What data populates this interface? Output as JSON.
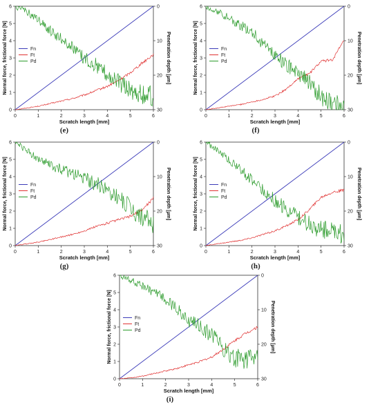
{
  "chart_data": [
    {
      "type": "line",
      "caption": "(e)",
      "xlabel": "Scratch length [mm]",
      "ylabel": "Normal force, frictional force [N]",
      "y2label": "Penetration depth [µm]",
      "xlim": [
        0,
        6
      ],
      "ylim": [
        0,
        6
      ],
      "y2lim": [
        0,
        30
      ],
      "y2_inverted": true,
      "xticks": [
        "0",
        "1",
        "2",
        "3",
        "4",
        "5",
        "6"
      ],
      "yticks": [
        "0",
        "1",
        "2",
        "3",
        "4",
        "5",
        "6"
      ],
      "y2ticks": [
        "0",
        "10",
        "20",
        "30"
      ],
      "legend_position": "left",
      "series": [
        {
          "name": "Fn",
          "axis": "left",
          "color": "#3a3ab8",
          "x": [
            0,
            6
          ],
          "y": [
            0,
            6
          ]
        },
        {
          "name": "Ft",
          "axis": "left",
          "color": "#e03030",
          "x": [
            0,
            0.5,
            1,
            1.5,
            2,
            2.5,
            3,
            3.5,
            4,
            4.5,
            5,
            5.5,
            6
          ],
          "y": [
            0,
            0.1,
            0.2,
            0.35,
            0.5,
            0.65,
            0.85,
            1.1,
            1.35,
            1.7,
            2.15,
            2.7,
            3.2
          ]
        },
        {
          "name": "Pd",
          "axis": "right",
          "color": "#2a9a2a",
          "x": [
            0,
            0.5,
            1,
            1.5,
            2,
            2.5,
            3,
            3.5,
            4,
            4.5,
            5,
            5.5,
            6
          ],
          "y": [
            0,
            1.5,
            4,
            7,
            9.5,
            12,
            15,
            17,
            19.5,
            22,
            24,
            25.5,
            26
          ]
        }
      ]
    },
    {
      "type": "line",
      "caption": "(f)",
      "xlabel": "Scratch length [mm]",
      "ylabel": "Normal force, frictional force [N]",
      "y2label": "Penetration depth [µm]",
      "xlim": [
        0,
        6
      ],
      "ylim": [
        0,
        6
      ],
      "y2lim": [
        0,
        30
      ],
      "y2_inverted": true,
      "xticks": [
        "0",
        "1",
        "2",
        "3",
        "4",
        "5",
        "6"
      ],
      "yticks": [
        "0",
        "1",
        "2",
        "3",
        "4",
        "5",
        "6"
      ],
      "y2ticks": [
        "0",
        "10",
        "20",
        "30"
      ],
      "legend_position": "left",
      "series": [
        {
          "name": "Fn",
          "axis": "left",
          "color": "#3a3ab8",
          "x": [
            0,
            6
          ],
          "y": [
            0,
            6
          ]
        },
        {
          "name": "Ft",
          "axis": "left",
          "color": "#e03030",
          "x": [
            0,
            0.5,
            1,
            1.5,
            2,
            2.5,
            3,
            3.5,
            4,
            4.5,
            5,
            5.5,
            6
          ],
          "y": [
            0,
            0.1,
            0.2,
            0.3,
            0.45,
            0.6,
            0.8,
            1.2,
            1.8,
            2.1,
            2.8,
            2.9,
            4
          ]
        },
        {
          "name": "Pd",
          "axis": "right",
          "color": "#2a9a2a",
          "x": [
            0,
            0.5,
            1,
            1.5,
            2,
            2.5,
            3,
            3.5,
            4,
            4.5,
            5,
            5.5,
            6
          ],
          "y": [
            0,
            1.5,
            3.5,
            5.5,
            7.5,
            11,
            14,
            17,
            20,
            22,
            26,
            28,
            29
          ]
        }
      ]
    },
    {
      "type": "line",
      "caption": "(g)",
      "xlabel": "Scratch length [mm]",
      "ylabel": "Normal force, frictional force [N]",
      "y2label": "Penetration depth [µm]",
      "xlim": [
        0,
        6
      ],
      "ylim": [
        0,
        6
      ],
      "y2lim": [
        0,
        30
      ],
      "y2_inverted": true,
      "xticks": [
        "0",
        "1",
        "2",
        "3",
        "4",
        "5",
        "6"
      ],
      "yticks": [
        "0",
        "1",
        "2",
        "3",
        "4",
        "5",
        "6"
      ],
      "y2ticks": [
        "0",
        "10",
        "20",
        "30"
      ],
      "legend_position": "left",
      "series": [
        {
          "name": "Fn",
          "axis": "left",
          "color": "#3a3ab8",
          "x": [
            0,
            6
          ],
          "y": [
            0,
            6
          ]
        },
        {
          "name": "Ft",
          "axis": "left",
          "color": "#e03030",
          "x": [
            0,
            0.5,
            1,
            1.5,
            2,
            2.5,
            3,
            3.5,
            4,
            4.5,
            5,
            5.5,
            6
          ],
          "y": [
            0,
            0.1,
            0.2,
            0.35,
            0.5,
            0.65,
            0.85,
            1.1,
            1.3,
            1.5,
            1.7,
            2.05,
            2.75
          ]
        },
        {
          "name": "Pd",
          "axis": "right",
          "color": "#2a9a2a",
          "x": [
            0,
            0.5,
            1,
            1.5,
            2,
            2.5,
            3,
            3.5,
            4,
            4.5,
            5,
            5.5,
            6
          ],
          "y": [
            0,
            2.5,
            5,
            6.5,
            8,
            9,
            10.5,
            12,
            14,
            16,
            19,
            21.5,
            24
          ]
        }
      ]
    },
    {
      "type": "line",
      "caption": "(h)",
      "xlabel": "Scratch length [mm]",
      "ylabel": "Normal force, frictional force [N]",
      "y2label": "Penetration depth [µm]",
      "xlim": [
        0,
        6
      ],
      "ylim": [
        0,
        6
      ],
      "y2lim": [
        0,
        30
      ],
      "y2_inverted": true,
      "xticks": [
        "0",
        "1",
        "2",
        "3",
        "4",
        "5",
        "6"
      ],
      "yticks": [
        "0",
        "1",
        "2",
        "3",
        "4",
        "5",
        "6"
      ],
      "y2ticks": [
        "0",
        "10",
        "20",
        "30"
      ],
      "legend_position": "left",
      "series": [
        {
          "name": "Fn",
          "axis": "left",
          "color": "#3a3ab8",
          "x": [
            0,
            6
          ],
          "y": [
            0,
            6
          ]
        },
        {
          "name": "Ft",
          "axis": "left",
          "color": "#e03030",
          "x": [
            0,
            0.5,
            1,
            1.5,
            2,
            2.5,
            3,
            3.5,
            4,
            4.5,
            5,
            5.5,
            6
          ],
          "y": [
            0,
            0.1,
            0.2,
            0.3,
            0.45,
            0.65,
            0.85,
            1.15,
            1.5,
            2.1,
            2.8,
            3.1,
            3.2
          ]
        },
        {
          "name": "Pd",
          "axis": "right",
          "color": "#2a9a2a",
          "x": [
            0,
            0.5,
            1,
            1.5,
            2,
            2.5,
            3,
            3.5,
            4,
            4.5,
            5,
            5.5,
            6
          ],
          "y": [
            0,
            2.5,
            5,
            8,
            11,
            14,
            17,
            19.5,
            22,
            24,
            25.5,
            26,
            26.5
          ]
        }
      ]
    },
    {
      "type": "line",
      "caption": "(i)",
      "xlabel": "Scratch length [mm]",
      "ylabel": "Normal force, frictional force [N]",
      "y2label": "Penetration depth [µm]",
      "xlim": [
        0,
        6
      ],
      "ylim": [
        0,
        6
      ],
      "y2lim": [
        0,
        30
      ],
      "y2_inverted": true,
      "xticks": [
        "0",
        "1",
        "2",
        "3",
        "4",
        "5",
        "6"
      ],
      "yticks": [
        "0",
        "1",
        "2",
        "3",
        "4",
        "5",
        "6"
      ],
      "y2ticks": [
        "0",
        "10",
        "20",
        "30"
      ],
      "legend_position": "left",
      "series": [
        {
          "name": "Fn",
          "axis": "left",
          "color": "#3a3ab8",
          "x": [
            0,
            6
          ],
          "y": [
            0,
            6
          ]
        },
        {
          "name": "Ft",
          "axis": "left",
          "color": "#e03030",
          "x": [
            0,
            0.5,
            1,
            1.5,
            2,
            2.5,
            3,
            3.5,
            4,
            4.5,
            5,
            5.5,
            6
          ],
          "y": [
            0,
            0.05,
            0.15,
            0.3,
            0.45,
            0.6,
            0.8,
            1.0,
            1.25,
            1.7,
            2.2,
            2.65,
            3.0
          ]
        },
        {
          "name": "Pd",
          "axis": "right",
          "color": "#2a9a2a",
          "x": [
            0,
            0.5,
            1,
            1.5,
            2,
            2.5,
            3,
            3.5,
            4,
            4.5,
            5,
            5.5,
            6
          ],
          "y": [
            0,
            1.5,
            3,
            5,
            7,
            10,
            13,
            15,
            17.5,
            21,
            24,
            24.5,
            24
          ]
        }
      ]
    }
  ]
}
